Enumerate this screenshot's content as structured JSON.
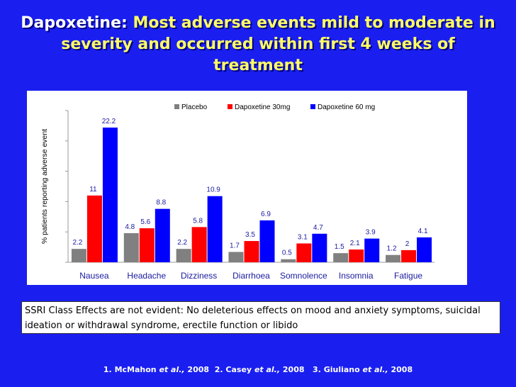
{
  "slide": {
    "title_lead": "Dapoxetine:",
    "title_rest": "Most adverse events mild to moderate in severity and occurred within first 4 weeks of treatment",
    "note": "SSRI Class Effects are not evident:  No deleterious effects on mood and anxiety symptoms, suicidal ideation or withdrawal syndrome, erectile function or libido",
    "references": [
      {
        "num": "1.",
        "author": "McMahon",
        "etal": "et al.,",
        "year": "2008"
      },
      {
        "num": "2.",
        "author": "Casey",
        "etal": "et al.,",
        "year": "2008"
      },
      {
        "num": "3.",
        "author": "Giuliano",
        "etal": "et al.,",
        "year": "2008"
      }
    ]
  },
  "chart_data": {
    "type": "bar",
    "ylabel": "% patients reporting  adverse event",
    "categories": [
      "Nausea",
      "Headache",
      "Dizziness",
      "Diarrhoea",
      "Somnolence",
      "Insomnia",
      "Fatigue"
    ],
    "series": [
      {
        "name": "Placebo",
        "color": "#808080",
        "values": [
          2.2,
          4.8,
          2.2,
          1.7,
          0.5,
          1.5,
          1.2
        ]
      },
      {
        "name": "Dapoxetine 30mg",
        "color": "#ff0000",
        "values": [
          11,
          5.6,
          5.8,
          3.5,
          3.1,
          2.1,
          2
        ]
      },
      {
        "name": "Dapoxetine 60 mg",
        "color": "#0000ff",
        "values": [
          22.2,
          8.8,
          10.9,
          6.9,
          4.7,
          3.9,
          4.1
        ]
      }
    ],
    "ylim": [
      0,
      25
    ],
    "legend": "top",
    "grid": false
  }
}
